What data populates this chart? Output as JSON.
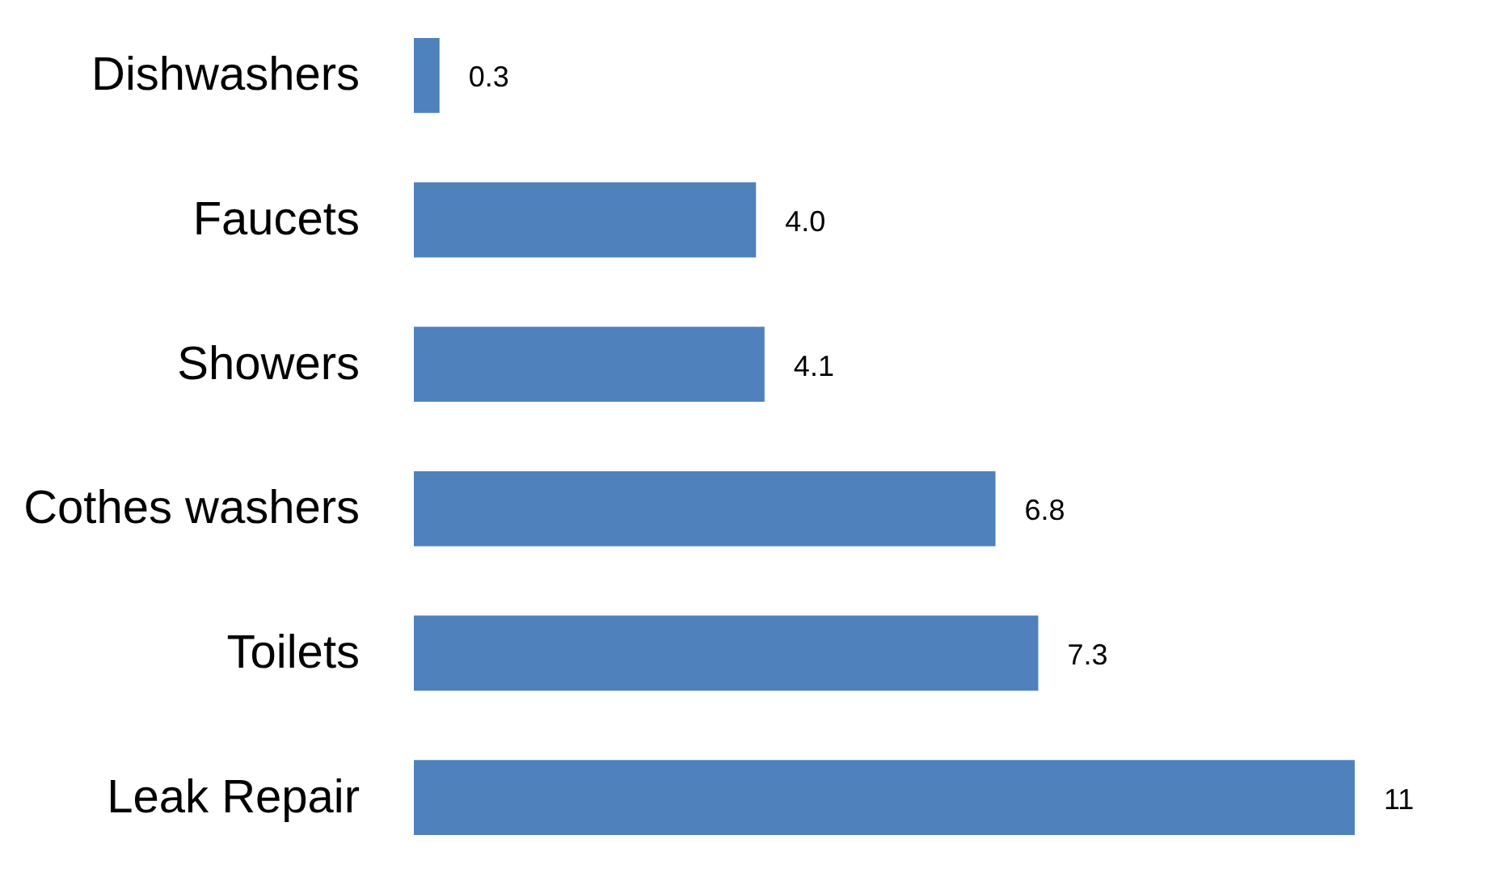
{
  "chart_data": {
    "type": "bar",
    "orientation": "horizontal",
    "categories": [
      "Dishwashers",
      "Faucets",
      "Showers",
      "Cothes washers",
      "Toilets",
      "Leak Repair"
    ],
    "values": [
      0.3,
      4.0,
      4.1,
      6.8,
      7.3,
      11
    ],
    "value_labels": [
      "0.3",
      "4.0",
      "4.1",
      "6.8",
      "7.3",
      "11"
    ],
    "color": "#4f81bd"
  }
}
